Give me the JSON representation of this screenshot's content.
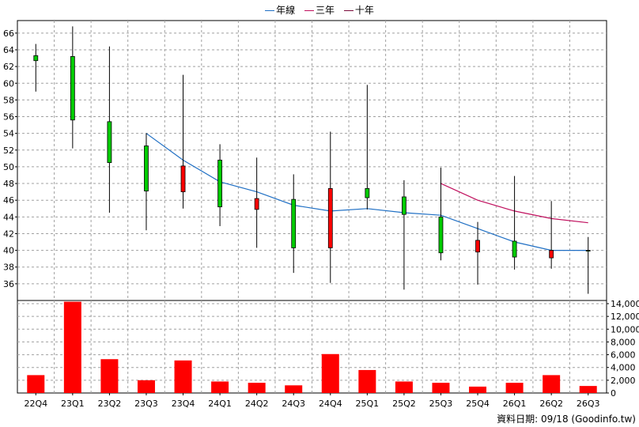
{
  "legend": [
    {
      "label": "年線",
      "color": "#1f6fc4"
    },
    {
      "label": "三年",
      "color": "#c0105e"
    },
    {
      "label": "十年",
      "color": "#7a0a3a"
    }
  ],
  "source_note": "資料日期: 09/18 (Goodinfo.tw)",
  "chart_data": [
    {
      "type": "candlestick",
      "categories": [
        "22Q4",
        "23Q1",
        "23Q2",
        "23Q3",
        "23Q4",
        "24Q1",
        "24Q2",
        "24Q3",
        "24Q4",
        "25Q1",
        "25Q2",
        "25Q3",
        "25Q4",
        "26Q1",
        "26Q2",
        "26Q3"
      ],
      "ylim": [
        34,
        67.5
      ],
      "yticks": [
        36,
        38,
        40,
        42,
        44,
        46,
        48,
        50,
        52,
        54,
        56,
        58,
        60,
        62,
        64,
        66
      ],
      "grid": true,
      "candles": [
        {
          "open": 62.7,
          "close": 63.3,
          "high": 64.7,
          "low": 59.0
        },
        {
          "open": 55.6,
          "close": 63.2,
          "high": 66.8,
          "low": 52.2
        },
        {
          "open": 50.5,
          "close": 55.4,
          "high": 64.4,
          "low": 44.5
        },
        {
          "open": 47.1,
          "close": 52.5,
          "high": 54.0,
          "low": 42.4
        },
        {
          "open": 50.1,
          "close": 47.0,
          "high": 61.0,
          "low": 45.0
        },
        {
          "open": 45.2,
          "close": 50.8,
          "high": 52.7,
          "low": 42.9
        },
        {
          "open": 46.2,
          "close": 44.9,
          "high": 51.1,
          "low": 40.3
        },
        {
          "open": 40.3,
          "close": 46.1,
          "high": 49.1,
          "low": 37.3
        },
        {
          "open": 47.4,
          "close": 40.3,
          "high": 54.2,
          "low": 36.1
        },
        {
          "open": 46.3,
          "close": 47.4,
          "high": 59.8,
          "low": 44.9
        },
        {
          "open": 44.3,
          "close": 46.4,
          "high": 48.4,
          "low": 35.3
        },
        {
          "open": 39.7,
          "close": 44.0,
          "high": 49.9,
          "low": 38.8
        },
        {
          "open": 41.2,
          "close": 39.8,
          "high": 43.4,
          "low": 35.9
        },
        {
          "open": 39.2,
          "close": 41.1,
          "high": 48.9,
          "low": 37.7
        },
        {
          "open": 40.0,
          "close": 39.1,
          "high": 45.9,
          "low": 37.8
        },
        {
          "open": 40.0,
          "close": 40.0,
          "high": 41.6,
          "low": 34.8
        }
      ],
      "up_color": "#00cc00",
      "down_color": "#ff0000",
      "series": [
        {
          "name": "年線",
          "color": "#1f6fc4",
          "values": [
            null,
            null,
            null,
            54.0,
            50.8,
            48.2,
            47.0,
            45.4,
            44.7,
            45.0,
            44.5,
            44.2,
            42.6,
            41.0,
            40.0,
            40.0
          ]
        },
        {
          "name": "三年",
          "color": "#c0105e",
          "values": [
            null,
            null,
            null,
            null,
            null,
            null,
            null,
            null,
            null,
            null,
            null,
            48.0,
            46.0,
            44.7,
            43.8,
            43.3
          ]
        }
      ]
    },
    {
      "type": "bar",
      "categories": [
        "22Q4",
        "23Q1",
        "23Q2",
        "23Q3",
        "23Q4",
        "24Q1",
        "24Q2",
        "24Q3",
        "24Q4",
        "25Q1",
        "25Q2",
        "25Q3",
        "25Q4",
        "26Q1",
        "26Q2",
        "26Q3"
      ],
      "values": [
        2800,
        14300,
        5300,
        2000,
        5100,
        1800,
        1600,
        1200,
        6100,
        3600,
        1800,
        1600,
        1000,
        1600,
        2800,
        1100
      ],
      "ylim": [
        0,
        14000
      ],
      "yticks": [
        0,
        2000,
        4000,
        6000,
        8000,
        10000,
        12000,
        14000
      ],
      "ytick_labels": [
        "0",
        "2,000",
        "4,000",
        "6,000",
        "8,000",
        "10,000",
        "12,000",
        "14,000"
      ],
      "bar_color": "#ff0000",
      "grid": true
    }
  ]
}
